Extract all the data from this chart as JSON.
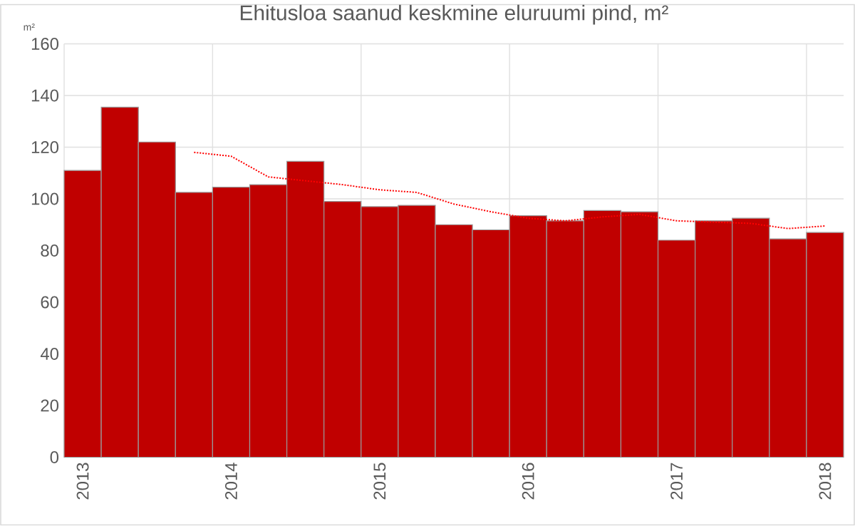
{
  "chart_data": {
    "type": "bar",
    "title": "Ehitusloa saanud keskmine eluruumi pind, m²",
    "ylabel": "m²",
    "categories": [
      "2013",
      null,
      null,
      null,
      "2014",
      null,
      null,
      null,
      "2015",
      null,
      null,
      null,
      "2016",
      null,
      null,
      null,
      "2017",
      null,
      null,
      null,
      "2018"
    ],
    "series": [
      {
        "color": "#c00000",
        "values": [
          111,
          135.5,
          122,
          102.5,
          104.5,
          105.5,
          114.5,
          99,
          97,
          97.5,
          90,
          88,
          93.5,
          91.5,
          95.5,
          95,
          84,
          91.5,
          92.5,
          84.5,
          87
        ]
      },
      {
        "type": "line",
        "color": "#ff0000",
        "line_style": "dotted",
        "values": [
          null,
          null,
          null,
          118,
          116.5,
          108.5,
          107,
          105.5,
          103.5,
          102.5,
          98,
          95,
          92.5,
          91.5,
          93,
          94,
          91.5,
          91,
          90.5,
          88.5,
          89.5
        ]
      }
    ],
    "ylim": [
      0,
      160
    ],
    "yticks": [
      0,
      20,
      40,
      60,
      80,
      100,
      120,
      140,
      160
    ],
    "grid": true
  }
}
